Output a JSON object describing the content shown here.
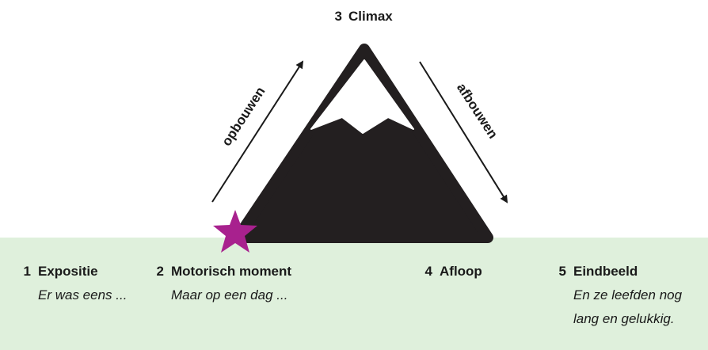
{
  "climax": {
    "number": "3",
    "title": "Climax"
  },
  "arrows": {
    "up": "opbouwen",
    "down": "afbouwen"
  },
  "stages": [
    {
      "number": "1",
      "title": "Expositie",
      "subtitle": [
        "Er was eens ..."
      ]
    },
    {
      "number": "2",
      "title": "Motorisch moment",
      "subtitle": [
        "Maar op een dag ..."
      ]
    },
    {
      "number": "4",
      "title": "Afloop",
      "subtitle": []
    },
    {
      "number": "5",
      "title": "Eindbeeld",
      "subtitle": [
        "En ze leefden nog",
        "lang en gelukkig."
      ]
    }
  ]
}
